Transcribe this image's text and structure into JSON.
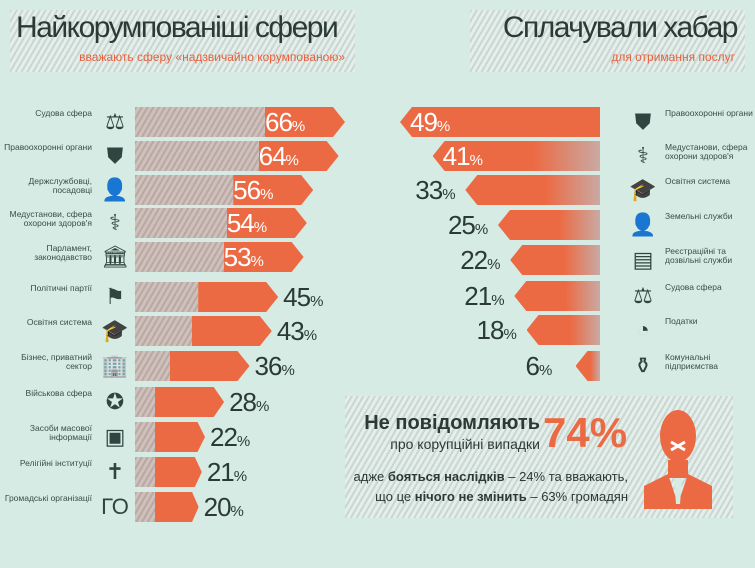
{
  "chart_data": [
    {
      "type": "bar",
      "title": "Найкорумпованіші сфери",
      "subtitle": "вважають сферу «надзвичайно корумпованою»",
      "unit": "%",
      "categories": [
        "Судова сфера",
        "Правоохоронні органи",
        "Держслужбовці, посадовці",
        "Медустанови, сфера охорони здоров'я",
        "Парламент, законодавство",
        "Політичні партії",
        "Освітня система",
        "Бізнес, приватний сектор",
        "Військова сфера",
        "Засоби масової інформації",
        "Релігійні інституції",
        "Громадські організації"
      ],
      "icons": [
        "gavel-icon",
        "shield-icon",
        "official-icon",
        "medical-icon",
        "parliament-icon",
        "party-icon",
        "graduation-cap-icon",
        "business-icon",
        "soldier-icon",
        "media-icon",
        "church-icon",
        "ngo-icon"
      ],
      "values": [
        66,
        64,
        56,
        54,
        53,
        45,
        43,
        36,
        28,
        22,
        21,
        20
      ]
    },
    {
      "type": "bar",
      "title": "Сплачували хабар",
      "subtitle": "для отримання послуг",
      "unit": "%",
      "categories": [
        "Правоохоронні органи",
        "Медустанови, сфера охорони здоров'я",
        "Освітня система",
        "Земельні служби",
        "Реєстраційні та дозвільні служби",
        "Судова сфера",
        "Податки",
        "Комунальні підприємства"
      ],
      "icons": [
        "shield-icon",
        "medical-icon",
        "graduation-cap-icon",
        "land-icon",
        "registry-icon",
        "gavel-icon",
        "pie-chart-icon",
        "utilities-icon"
      ],
      "values": [
        49,
        41,
        33,
        25,
        22,
        21,
        18,
        6
      ]
    }
  ],
  "callout": {
    "title": "Не повідомляють",
    "subtitle": "про корупційні випадки",
    "value": "74%",
    "line1_a": "адже ",
    "line1_b": "бояться наслідків",
    "line1_c": " – 24% та вважають,",
    "line2_a": "що це ",
    "line2_b": "нічого не змінить",
    "line2_c": " – 63% громадян"
  },
  "colors": {
    "accent": "#ec6a43",
    "dark": "#324440",
    "background": "#d6ebe3"
  }
}
